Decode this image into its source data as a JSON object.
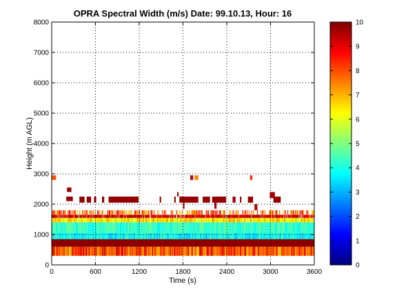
{
  "chart_data": {
    "type": "heatmap",
    "title": "OPRA Spectral Width (m/s)  Date: 99.10.13, Hour: 16",
    "xlabel": "Time (s)",
    "ylabel": "Height (m AGL)",
    "xlim": [
      0,
      3600
    ],
    "ylim": [
      0,
      8000
    ],
    "x_ticks": [
      "0",
      "600",
      "1200",
      "1800",
      "2400",
      "3000",
      "3600"
    ],
    "y_ticks": [
      "0",
      "1000",
      "2000",
      "3000",
      "4000",
      "5000",
      "6000",
      "7000",
      "8000"
    ],
    "grid": "dotted",
    "colorbar": {
      "min": 0,
      "max": 10,
      "ticks": [
        "0",
        "1",
        "2",
        "3",
        "4",
        "5",
        "6",
        "7",
        "8",
        "9",
        "10"
      ],
      "colormap": "jet"
    },
    "bands": [
      {
        "y_bottom": 300,
        "y_top": 600,
        "value_range": [
          6.5,
          9.5
        ],
        "coverage": 1.0
      },
      {
        "y_bottom": 600,
        "y_top": 850,
        "value_range": [
          9.8,
          10
        ],
        "coverage": 1.0
      },
      {
        "y_bottom": 850,
        "y_top": 1050,
        "value_range": [
          3.0,
          4.5
        ],
        "coverage": 1.0
      },
      {
        "y_bottom": 1050,
        "y_top": 1400,
        "value_range": [
          3.5,
          5.0
        ],
        "coverage": 1.0
      },
      {
        "y_bottom": 1400,
        "y_top": 1550,
        "value_range": [
          5.5,
          7.5
        ],
        "coverage": 0.95
      },
      {
        "y_bottom": 1550,
        "y_top": 1650,
        "value_range": [
          8.5,
          10
        ],
        "coverage": 0.9
      },
      {
        "y_bottom": 1650,
        "y_top": 1800,
        "value_range": [
          6.5,
          9.0
        ],
        "coverage": 0.45
      }
    ],
    "sparse_cells": [
      {
        "x": 0,
        "x_end": 60,
        "y": 2800,
        "y_end": 2950,
        "value": 8
      },
      {
        "x": 210,
        "x_end": 270,
        "y": 2400,
        "y_end": 2550,
        "value": 9.7
      },
      {
        "x": 200,
        "x_end": 290,
        "y": 2100,
        "y_end": 2250,
        "value": 9.8
      },
      {
        "x": 380,
        "x_end": 450,
        "y": 2050,
        "y_end": 2250,
        "value": 9.8
      },
      {
        "x": 480,
        "x_end": 540,
        "y": 2050,
        "y_end": 2250,
        "value": 9.8
      },
      {
        "x": 580,
        "x_end": 610,
        "y": 2050,
        "y_end": 2250,
        "value": 9.8
      },
      {
        "x": 690,
        "x_end": 720,
        "y": 2050,
        "y_end": 2250,
        "value": 9.8
      },
      {
        "x": 780,
        "x_end": 1190,
        "y": 2050,
        "y_end": 2250,
        "value": 9.8
      },
      {
        "x": 1480,
        "x_end": 1500,
        "y": 2050,
        "y_end": 2250,
        "value": 9.8
      },
      {
        "x": 1680,
        "x_end": 1700,
        "y": 2050,
        "y_end": 2250,
        "value": 9.8
      },
      {
        "x": 1720,
        "x_end": 1740,
        "y": 2250,
        "y_end": 2400,
        "value": 9.7
      },
      {
        "x": 1750,
        "x_end": 2010,
        "y": 2050,
        "y_end": 2250,
        "value": 9.8
      },
      {
        "x": 1800,
        "x_end": 1820,
        "y": 1850,
        "y_end": 2050,
        "value": 9.7
      },
      {
        "x": 1900,
        "x_end": 1940,
        "y": 2800,
        "y_end": 2950,
        "value": 9.5
      },
      {
        "x": 1960,
        "x_end": 2010,
        "y": 2800,
        "y_end": 2950,
        "value": 7.5
      },
      {
        "x": 2070,
        "x_end": 2170,
        "y": 2050,
        "y_end": 2250,
        "value": 9.8
      },
      {
        "x": 2200,
        "x_end": 2390,
        "y": 2050,
        "y_end": 2250,
        "value": 9.8
      },
      {
        "x": 2230,
        "x_end": 2260,
        "y": 1850,
        "y_end": 2050,
        "value": 9.6
      },
      {
        "x": 2480,
        "x_end": 2520,
        "y": 2050,
        "y_end": 2250,
        "value": 9.8
      },
      {
        "x": 2580,
        "x_end": 2600,
        "y": 2050,
        "y_end": 2250,
        "value": 9.8
      },
      {
        "x": 2690,
        "x_end": 2760,
        "y": 2050,
        "y_end": 2250,
        "value": 9.8
      },
      {
        "x": 2720,
        "x_end": 2750,
        "y": 2800,
        "y_end": 2950,
        "value": 8.5
      },
      {
        "x": 2780,
        "x_end": 2820,
        "y": 1800,
        "y_end": 2000,
        "value": 9.5
      },
      {
        "x": 2990,
        "x_end": 3060,
        "y": 2200,
        "y_end": 2400,
        "value": 9.6
      },
      {
        "x": 3040,
        "x_end": 3140,
        "y": 2050,
        "y_end": 2250,
        "value": 9.8
      }
    ]
  }
}
